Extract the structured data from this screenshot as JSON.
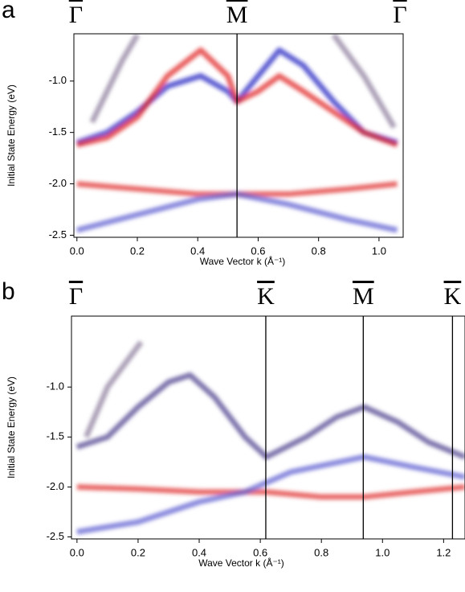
{
  "chart_data": [
    {
      "type": "line",
      "panel_label": "a",
      "x_label": "Wave Vector k (Å⁻¹)",
      "y_label": "Initial State Energy (eV)",
      "xlim": [
        -0.01,
        1.08
      ],
      "ylim": [
        -2.52,
        -0.54
      ],
      "xticks": [
        {
          "value": 0,
          "label": "0.0"
        },
        0.2,
        0.4,
        0.6,
        0.8,
        {
          "value": 1,
          "label": "1.0"
        }
      ],
      "yticks": [
        {
          "value": -1,
          "label": "-1.0"
        },
        -1.5,
        {
          "value": -2,
          "label": "-2.0"
        },
        -2.5
      ],
      "symmetry_points": [
        {
          "label": "Γ",
          "k": 0
        },
        {
          "label": "M",
          "k": 0.53
        },
        {
          "label": "Γ",
          "k": 1.08
        }
      ],
      "series": [
        {
          "color": "#2020c0",
          "x": [
            0,
            0.1,
            0.2,
            0.3,
            0.41,
            0.5,
            0.53,
            0.6,
            0.67,
            0.75,
            0.85,
            0.95,
            1.06
          ],
          "values": [
            -1.6,
            -1.5,
            -1.3,
            -1.05,
            -0.95,
            -1.1,
            -1.2,
            -0.95,
            -0.7,
            -0.85,
            -1.2,
            -1.5,
            -1.6
          ]
        },
        {
          "color": "#e02020",
          "x": [
            0,
            0.1,
            0.2,
            0.3,
            0.41,
            0.5,
            0.53,
            0.6,
            0.67,
            0.75,
            0.85,
            0.95,
            1.06
          ],
          "values": [
            -1.62,
            -1.55,
            -1.35,
            -0.95,
            -0.7,
            -0.95,
            -1.2,
            -1.1,
            -0.95,
            -1.1,
            -1.3,
            -1.5,
            -1.62
          ]
        },
        {
          "color": "#8a7a9a",
          "x": [
            0.05,
            0.1,
            0.15,
            0.2
          ],
          "values": [
            -1.4,
            -1.1,
            -0.8,
            -0.55
          ]
        },
        {
          "color": "#8a7a9a",
          "x": [
            0.85,
            0.95,
            1.0,
            1.05
          ],
          "values": [
            -0.55,
            -0.95,
            -1.2,
            -1.45
          ]
        },
        {
          "color": "#e03030",
          "x": [
            0,
            0.2,
            0.4,
            0.53,
            0.7,
            0.9,
            1.06
          ],
          "values": [
            -2.0,
            -2.05,
            -2.1,
            -2.1,
            -2.1,
            -2.05,
            -2.0
          ]
        },
        {
          "color": "#5a5ad0",
          "x": [
            0,
            0.2,
            0.4,
            0.53,
            0.7,
            0.9,
            1.06
          ],
          "values": [
            -2.45,
            -2.3,
            -2.15,
            -2.1,
            -2.2,
            -2.35,
            -2.45
          ]
        }
      ]
    },
    {
      "type": "line",
      "panel_label": "b",
      "x_label": "Wave Vector k (Å⁻¹)",
      "y_label": "Initial State Energy (eV)",
      "xlim": [
        -0.018,
        1.27
      ],
      "ylim": [
        -2.52,
        -0.29
      ],
      "xticks": [
        {
          "value": 0,
          "label": "0.0"
        },
        0.2,
        0.4,
        0.6,
        0.8,
        {
          "value": 1,
          "label": "1.0"
        },
        1.2
      ],
      "yticks": [
        {
          "value": -1,
          "label": "-1.0"
        },
        -1.5,
        {
          "value": -2,
          "label": "-2.0"
        },
        -2.5
      ],
      "symmetry_points": [
        {
          "label": "Γ",
          "k": 0
        },
        {
          "label": "K",
          "k": 0.618
        },
        {
          "label": "M",
          "k": 0.937
        },
        {
          "label": "K",
          "k": 1.229
        }
      ],
      "series": [
        {
          "color": "#8a7a9a",
          "x": [
            0.03,
            0.1,
            0.21
          ],
          "values": [
            -1.5,
            -1.0,
            -0.55
          ]
        },
        {
          "color": "#4a3a8a",
          "x": [
            0,
            0.1,
            0.2,
            0.3,
            0.37,
            0.45,
            0.55,
            0.62,
            0.75,
            0.85,
            0.94,
            1.05,
            1.15,
            1.27
          ],
          "values": [
            -1.6,
            -1.5,
            -1.2,
            -0.95,
            -0.88,
            -1.1,
            -1.5,
            -1.7,
            -1.5,
            -1.3,
            -1.2,
            -1.35,
            -1.55,
            -1.7
          ]
        },
        {
          "color": "#e03030",
          "x": [
            0,
            0.2,
            0.4,
            0.62,
            0.8,
            0.94,
            1.1,
            1.27
          ],
          "values": [
            -2.0,
            -2.02,
            -2.05,
            -2.05,
            -2.1,
            -2.1,
            -2.05,
            -2.0
          ]
        },
        {
          "color": "#5a5ad0",
          "x": [
            0,
            0.2,
            0.4,
            0.55,
            0.7,
            0.94,
            1.1,
            1.27
          ],
          "values": [
            -2.45,
            -2.35,
            -2.15,
            -2.05,
            -1.85,
            -1.7,
            -1.8,
            -1.9
          ]
        }
      ]
    }
  ]
}
